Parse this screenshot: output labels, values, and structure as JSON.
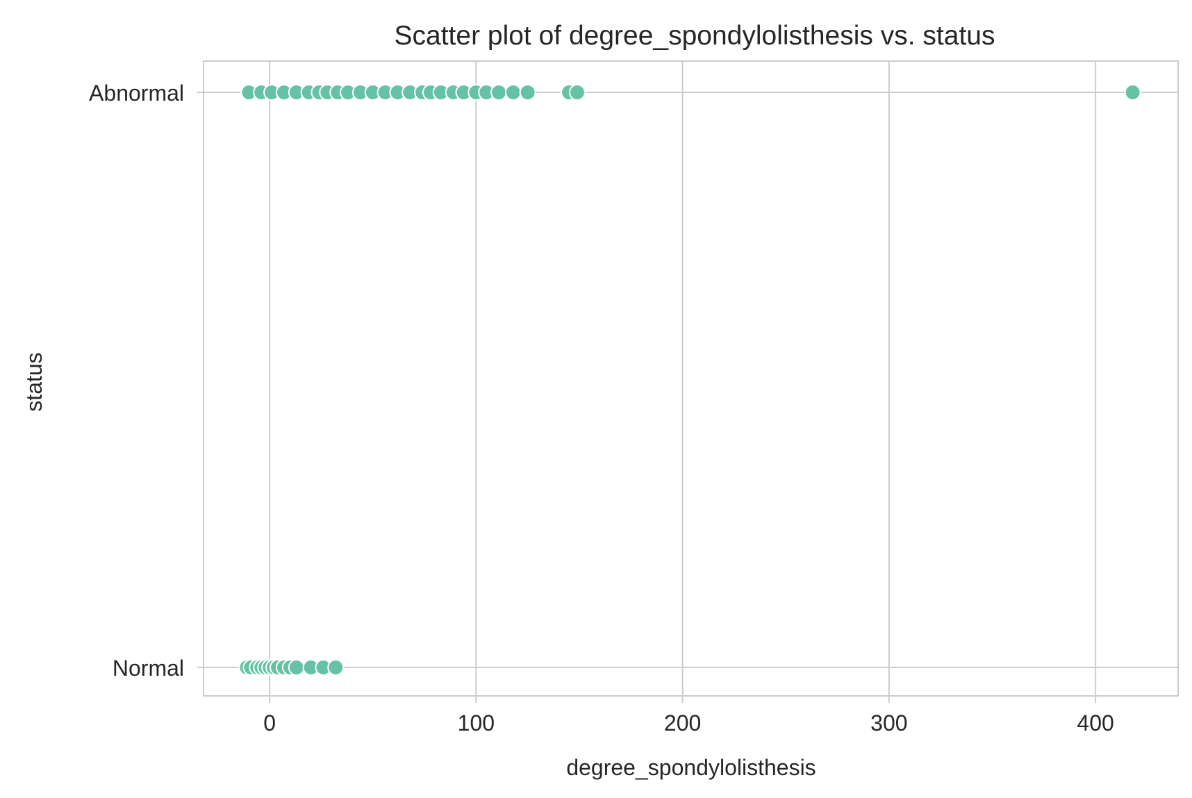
{
  "chart_data": {
    "type": "scatter",
    "title": "Scatter plot of degree_spondylolisthesis vs. status",
    "xlabel": "degree_spondylolisthesis",
    "ylabel": "status",
    "xlim": [
      -32,
      440
    ],
    "xticks": [
      0,
      100,
      200,
      300,
      400
    ],
    "categories": [
      "Abnormal",
      "Normal"
    ],
    "grid": true,
    "marker_color": "#66c2a5",
    "series": [
      {
        "category": "Abnormal",
        "x": [
          -10,
          -4,
          1,
          7,
          13,
          19,
          24,
          28,
          33,
          38,
          44,
          50,
          56,
          62,
          68,
          74,
          78,
          83,
          89,
          94,
          100,
          105,
          111,
          118,
          125,
          145,
          149,
          418
        ]
      },
      {
        "category": "Normal",
        "x": [
          -11,
          -9,
          -6,
          -4,
          -2,
          0,
          2,
          4,
          7,
          10,
          13,
          20,
          26,
          32
        ]
      }
    ]
  }
}
